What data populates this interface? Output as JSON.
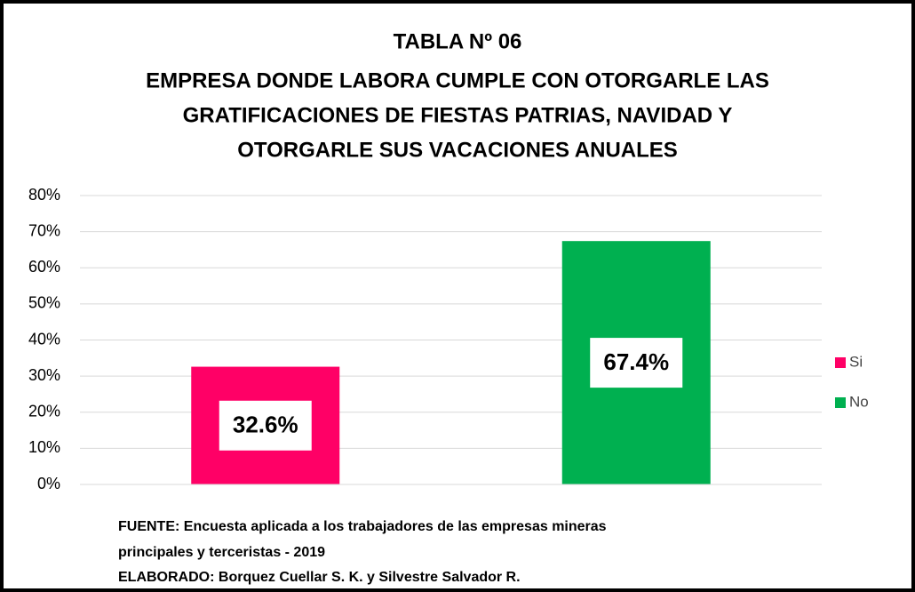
{
  "chart_data": {
    "type": "bar",
    "title": [
      "TABLA Nº 06",
      "EMPRESA DONDE LABORA CUMPLE CON OTORGARLE LAS",
      "GRATIFICACIONES DE FIESTAS PATRIAS, NAVIDAD Y",
      "OTORGARLE SUS VACACIONES ANUALES"
    ],
    "categories": [
      null
    ],
    "series": [
      {
        "name": "Si",
        "color": "#ff0066",
        "values": [
          32.6
        ],
        "value_labels": [
          "32.6%"
        ]
      },
      {
        "name": "No",
        "color": "#00b050",
        "values": [
          67.4
        ],
        "value_labels": [
          "67.4%"
        ]
      }
    ],
    "ylim": [
      0,
      80
    ],
    "yticks": [
      {
        "value": 0,
        "label": "0%"
      },
      {
        "value": 10,
        "label": "10%"
      },
      {
        "value": 20,
        "label": "20%"
      },
      {
        "value": 30,
        "label": "30%"
      },
      {
        "value": 40,
        "label": "40%"
      },
      {
        "value": 50,
        "label": "50%"
      },
      {
        "value": 60,
        "label": "60%"
      },
      {
        "value": 70,
        "label": "70%"
      },
      {
        "value": 80,
        "label": "80%"
      }
    ],
    "grid": true,
    "legend": "right",
    "notes": [
      "FUENTE: Encuesta aplicada a los trabajadores de las empresas mineras",
      "principales y terceristas - 2019",
      "ELABORADO: Borquez Cuellar S. K. y Silvestre Salvador R."
    ]
  }
}
